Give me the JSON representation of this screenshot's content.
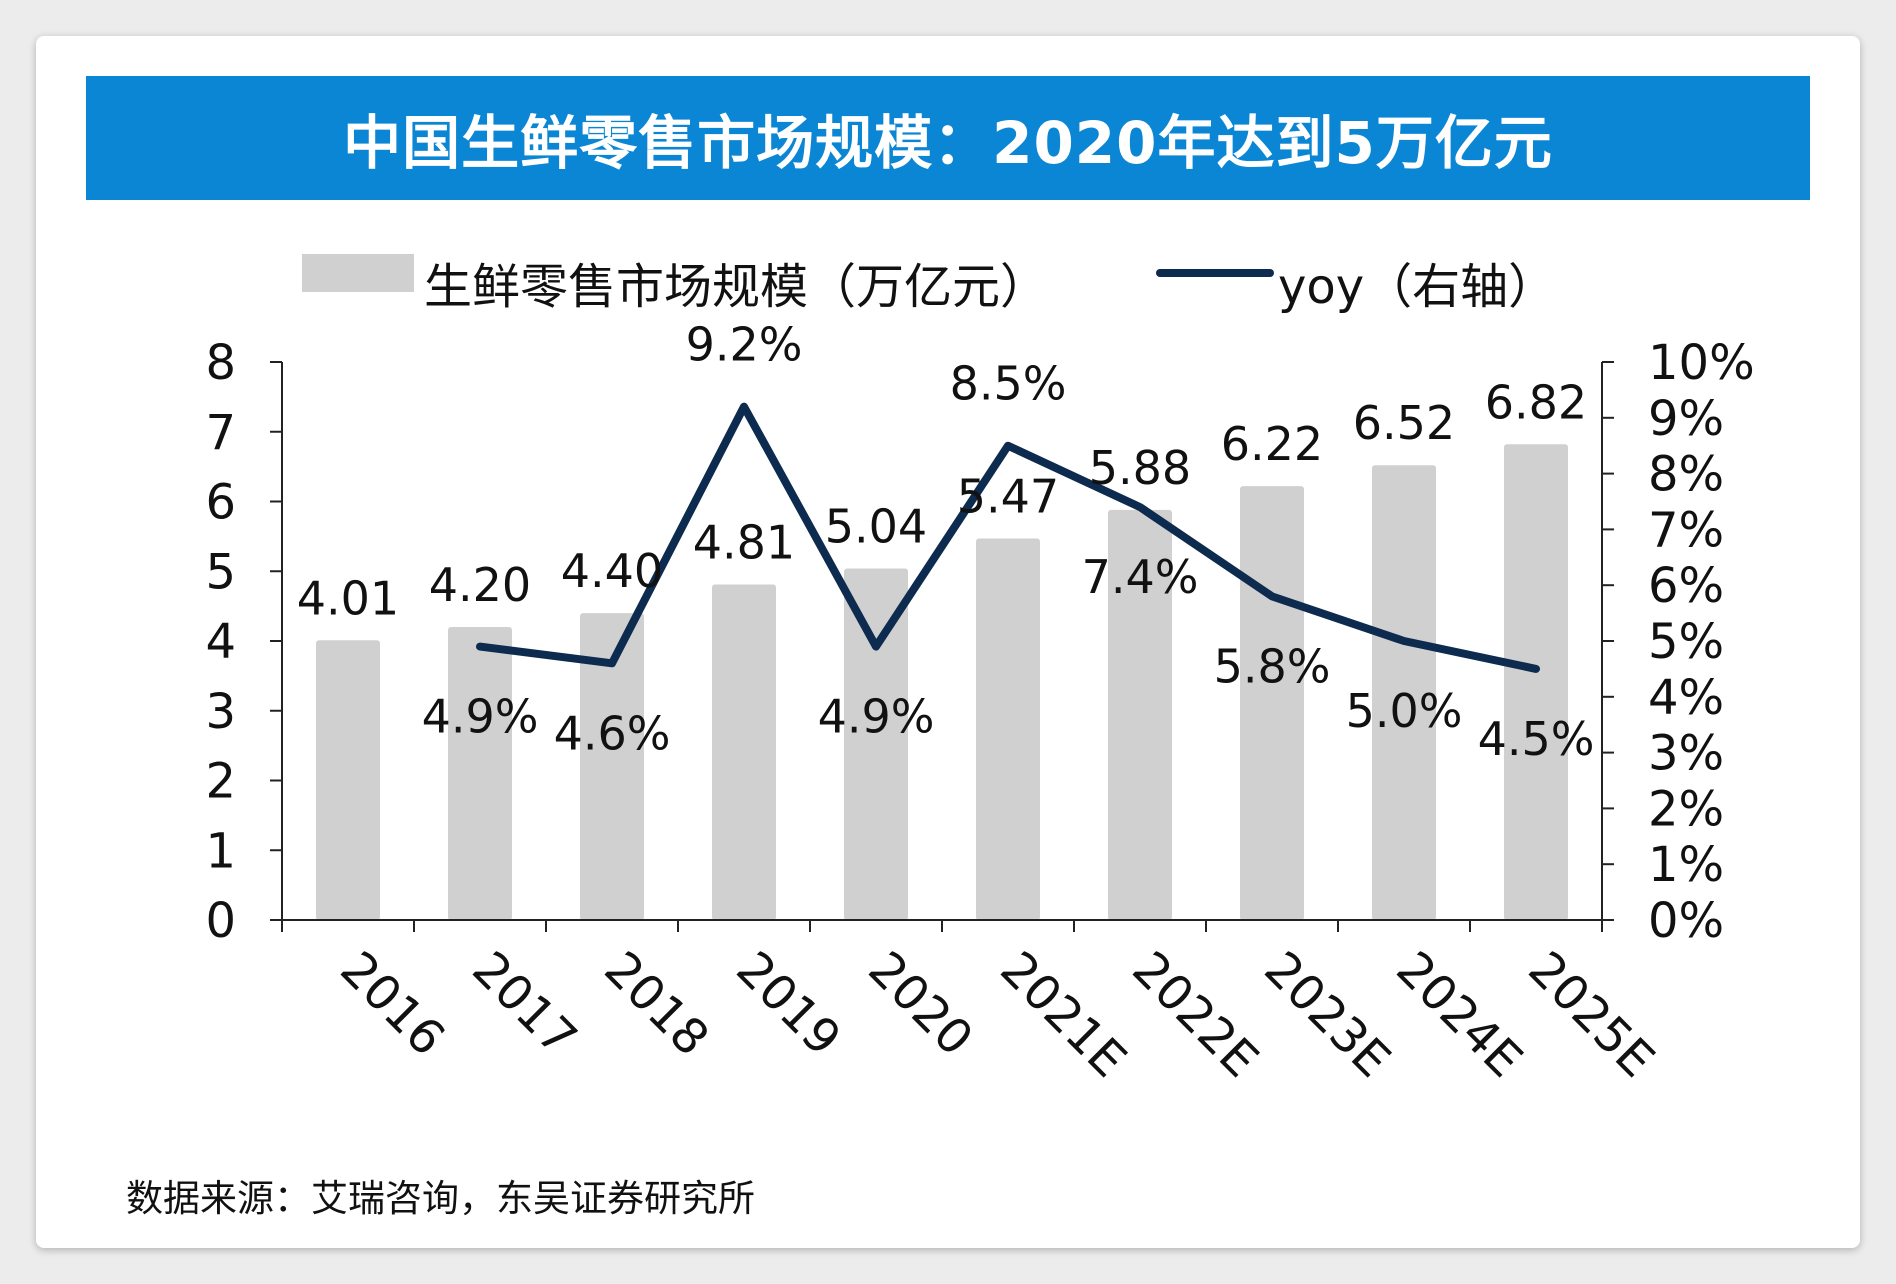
{
  "title": "中国生鲜零售市场规模：2020年达到5万亿元",
  "source": "数据来源：艾瑞咨询，东吴证券研究所",
  "colors": {
    "title_bg": "#0b86d4",
    "bar": "#d0d0d0",
    "line": "#0d2a4f"
  },
  "chart_data": {
    "type": "bar",
    "categories": [
      "2016",
      "2017",
      "2018",
      "2019",
      "2020",
      "2021E",
      "2022E",
      "2023E",
      "2024E",
      "2025E"
    ],
    "series": [
      {
        "name": "生鲜零售市场规模（万亿元）",
        "type": "bar",
        "axis": "left",
        "values": [
          4.01,
          4.2,
          4.4,
          4.81,
          5.04,
          5.47,
          5.88,
          6.22,
          6.52,
          6.82
        ],
        "labels": [
          "4.01",
          "4.20",
          "4.40",
          "4.81",
          "5.04",
          "5.47",
          "5.88",
          "6.22",
          "6.52",
          "6.82"
        ]
      },
      {
        "name": "yoy（右轴）",
        "type": "line",
        "axis": "right",
        "values": [
          null,
          4.9,
          4.6,
          9.2,
          4.9,
          8.5,
          7.4,
          5.8,
          5.0,
          4.5
        ],
        "labels": [
          "",
          "4.9%",
          "4.6%",
          "9.2%",
          "4.9%",
          "8.5%",
          "7.4%",
          "5.8%",
          "5.0%",
          "4.5%"
        ]
      }
    ],
    "y_left": {
      "min": 0,
      "max": 8,
      "ticks": [
        "0",
        "1",
        "2",
        "3",
        "4",
        "5",
        "6",
        "7",
        "8"
      ]
    },
    "y_right": {
      "min": 0,
      "max": 10,
      "ticks": [
        "0%",
        "1%",
        "2%",
        "3%",
        "4%",
        "5%",
        "6%",
        "7%",
        "8%",
        "9%",
        "10%"
      ]
    },
    "legend": "top-center",
    "grid": false
  }
}
